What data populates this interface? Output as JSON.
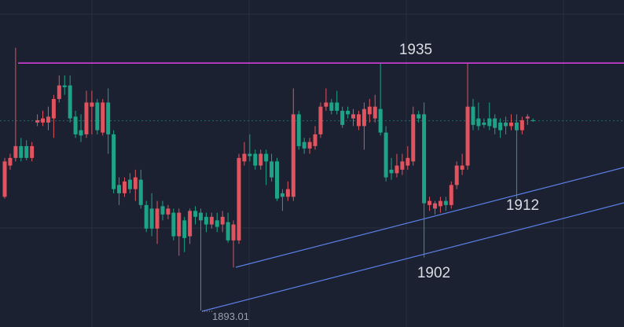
{
  "chart_data": {
    "type": "candlestick",
    "ylim": [
      1890.2,
      1945.7
    ],
    "up_color": "#e0535f",
    "down_color": "#1fa387",
    "annotations": [
      1935,
      1902,
      1912,
      1893.01
    ],
    "open": [
      1912.3,
      1917.6,
      1918.9,
      1920.9,
      1920.9,
      1918.9,
      1924.9,
      1924.9,
      1924.9,
      1925.6,
      1928.9,
      1931.2,
      1931.2,
      1925.9,
      1923.6,
      1922.9,
      1927.6,
      1928.3,
      1923.2,
      1928.3,
      1922.9,
      1914.3,
      1912.9,
      1915.2,
      1913.6,
      1915.2,
      1910.9,
      1910.3,
      1906.9,
      1910.7,
      1909.3,
      1909.6,
      1905.6,
      1908.3,
      1905.6,
      1909.9,
      1909.6,
      1908.9,
      1907.6,
      1908.3,
      1907.6,
      1908.0,
      1904.9,
      1904.9,
      1918.3,
      1919.6,
      1919.6,
      1917.6,
      1919.6,
      1918.3,
      1918.3,
      1912.9,
      1912.3,
      1912.3,
      1926.3,
      1921.6,
      1920.5,
      1920.9,
      1922.9,
      1927.6,
      1928.3,
      1928.3,
      1926.9,
      1926.9,
      1925.6,
      1924.3,
      1924.3,
      1926.3,
      1925.6,
      1927.2,
      1923.2,
      1916.9,
      1916.3,
      1916.9,
      1917.6,
      1918.3,
      1926.3,
      1926.3,
      1910.9,
      1910.3,
      1910.7,
      1911.6,
      1910.9,
      1914.3,
      1916.9,
      1917.6,
      1927.6,
      1925.6,
      1924.9,
      1925.6,
      1925.6,
      1924.9,
      1924.9,
      1924.3,
      1924.9,
      1923.6,
      1925.6,
      1925.3
    ],
    "high": [
      1918.9,
      1919.6,
      1937.6,
      1922.3,
      1921.9,
      1921.6,
      1926.3,
      1926.9,
      1927.6,
      1929.6,
      1932.9,
      1932.9,
      1932.9,
      1926.9,
      1926.3,
      1930.3,
      1930.3,
      1928.9,
      1928.9,
      1930.7,
      1923.6,
      1915.6,
      1915.6,
      1916.3,
      1916.9,
      1916.9,
      1911.6,
      1912.9,
      1911.6,
      1911.6,
      1910.9,
      1910.3,
      1910.3,
      1908.9,
      1910.3,
      1910.7,
      1910.3,
      1909.6,
      1909.6,
      1909.6,
      1909.9,
      1909.6,
      1908.3,
      1919.6,
      1921.6,
      1922.9,
      1920.3,
      1920.3,
      1920.3,
      1919.6,
      1918.9,
      1913.6,
      1914.9,
      1930.7,
      1926.9,
      1922.3,
      1922.3,
      1924.3,
      1928.3,
      1930.7,
      1928.9,
      1930.3,
      1927.6,
      1927.6,
      1927.2,
      1926.9,
      1928.3,
      1928.9,
      1929.6,
      1935.0,
      1924.3,
      1918.9,
      1919.6,
      1919.6,
      1920.9,
      1927.6,
      1926.9,
      1928.3,
      1912.3,
      1911.6,
      1912.3,
      1912.3,
      1914.9,
      1918.3,
      1919.6,
      1935.0,
      1928.9,
      1928.3,
      1925.6,
      1928.3,
      1926.3,
      1925.6,
      1925.9,
      1926.3,
      1926.3,
      1925.9,
      1926.3,
      1925.6
    ],
    "low": [
      1912.0,
      1916.9,
      1918.3,
      1918.3,
      1918.5,
      1918.3,
      1924.3,
      1924.3,
      1923.6,
      1922.3,
      1928.3,
      1929.6,
      1924.9,
      1922.3,
      1921.6,
      1922.3,
      1922.9,
      1922.9,
      1922.7,
      1919.6,
      1912.9,
      1910.9,
      1912.3,
      1912.9,
      1911.6,
      1910.3,
      1906.3,
      1905.6,
      1904.3,
      1908.3,
      1908.5,
      1904.9,
      1902.3,
      1902.9,
      1904.3,
      1907.6,
      1893.01,
      1906.3,
      1906.9,
      1906.3,
      1906.3,
      1904.5,
      1900.3,
      1904.3,
      1917.6,
      1918.3,
      1916.9,
      1916.9,
      1914.3,
      1914.9,
      1911.6,
      1909.9,
      1911.6,
      1911.6,
      1920.3,
      1919.6,
      1919.6,
      1920.3,
      1922.3,
      1926.9,
      1926.3,
      1926.3,
      1924.0,
      1925.6,
      1924.3,
      1923.6,
      1920.3,
      1924.9,
      1924.9,
      1922.7,
      1914.9,
      1915.2,
      1915.6,
      1916.0,
      1916.9,
      1917.6,
      1924.9,
      1902.0,
      1909.9,
      1909.3,
      1909.6,
      1909.9,
      1910.3,
      1913.6,
      1916.0,
      1916.9,
      1923.6,
      1923.6,
      1924.0,
      1923.6,
      1922.9,
      1922.3,
      1922.9,
      1923.6,
      1912.0,
      1922.9,
      1924.5,
      1925.0
    ],
    "close": [
      1918.3,
      1918.9,
      1920.9,
      1918.9,
      1918.9,
      1920.9,
      1925.3,
      1925.6,
      1925.9,
      1928.9,
      1931.2,
      1930.9,
      1925.6,
      1922.9,
      1922.7,
      1928.3,
      1928.3,
      1923.6,
      1928.3,
      1922.9,
      1913.6,
      1912.9,
      1914.9,
      1913.6,
      1915.6,
      1910.9,
      1906.9,
      1906.9,
      1910.3,
      1909.3,
      1910.3,
      1905.6,
      1909.6,
      1905.3,
      1909.9,
      1908.9,
      1908.3,
      1907.6,
      1908.9,
      1907.2,
      1908.9,
      1904.9,
      1907.6,
      1918.9,
      1919.6,
      1919.2,
      1917.6,
      1919.6,
      1918.3,
      1915.6,
      1912.0,
      1912.3,
      1913.6,
      1926.3,
      1920.9,
      1920.5,
      1921.6,
      1922.9,
      1927.6,
      1928.3,
      1926.9,
      1926.9,
      1924.5,
      1926.3,
      1926.3,
      1926.3,
      1927.2,
      1927.6,
      1927.6,
      1923.2,
      1915.6,
      1916.3,
      1917.6,
      1918.3,
      1918.9,
      1926.3,
      1925.6,
      1911.2,
      1911.6,
      1911.2,
      1911.6,
      1910.9,
      1914.3,
      1917.6,
      1917.6,
      1927.6,
      1924.5,
      1924.3,
      1924.5,
      1924.3,
      1924.0,
      1923.6,
      1924.3,
      1924.9,
      1923.6,
      1925.3,
      1925.9,
      1925.2
    ]
  }
}
